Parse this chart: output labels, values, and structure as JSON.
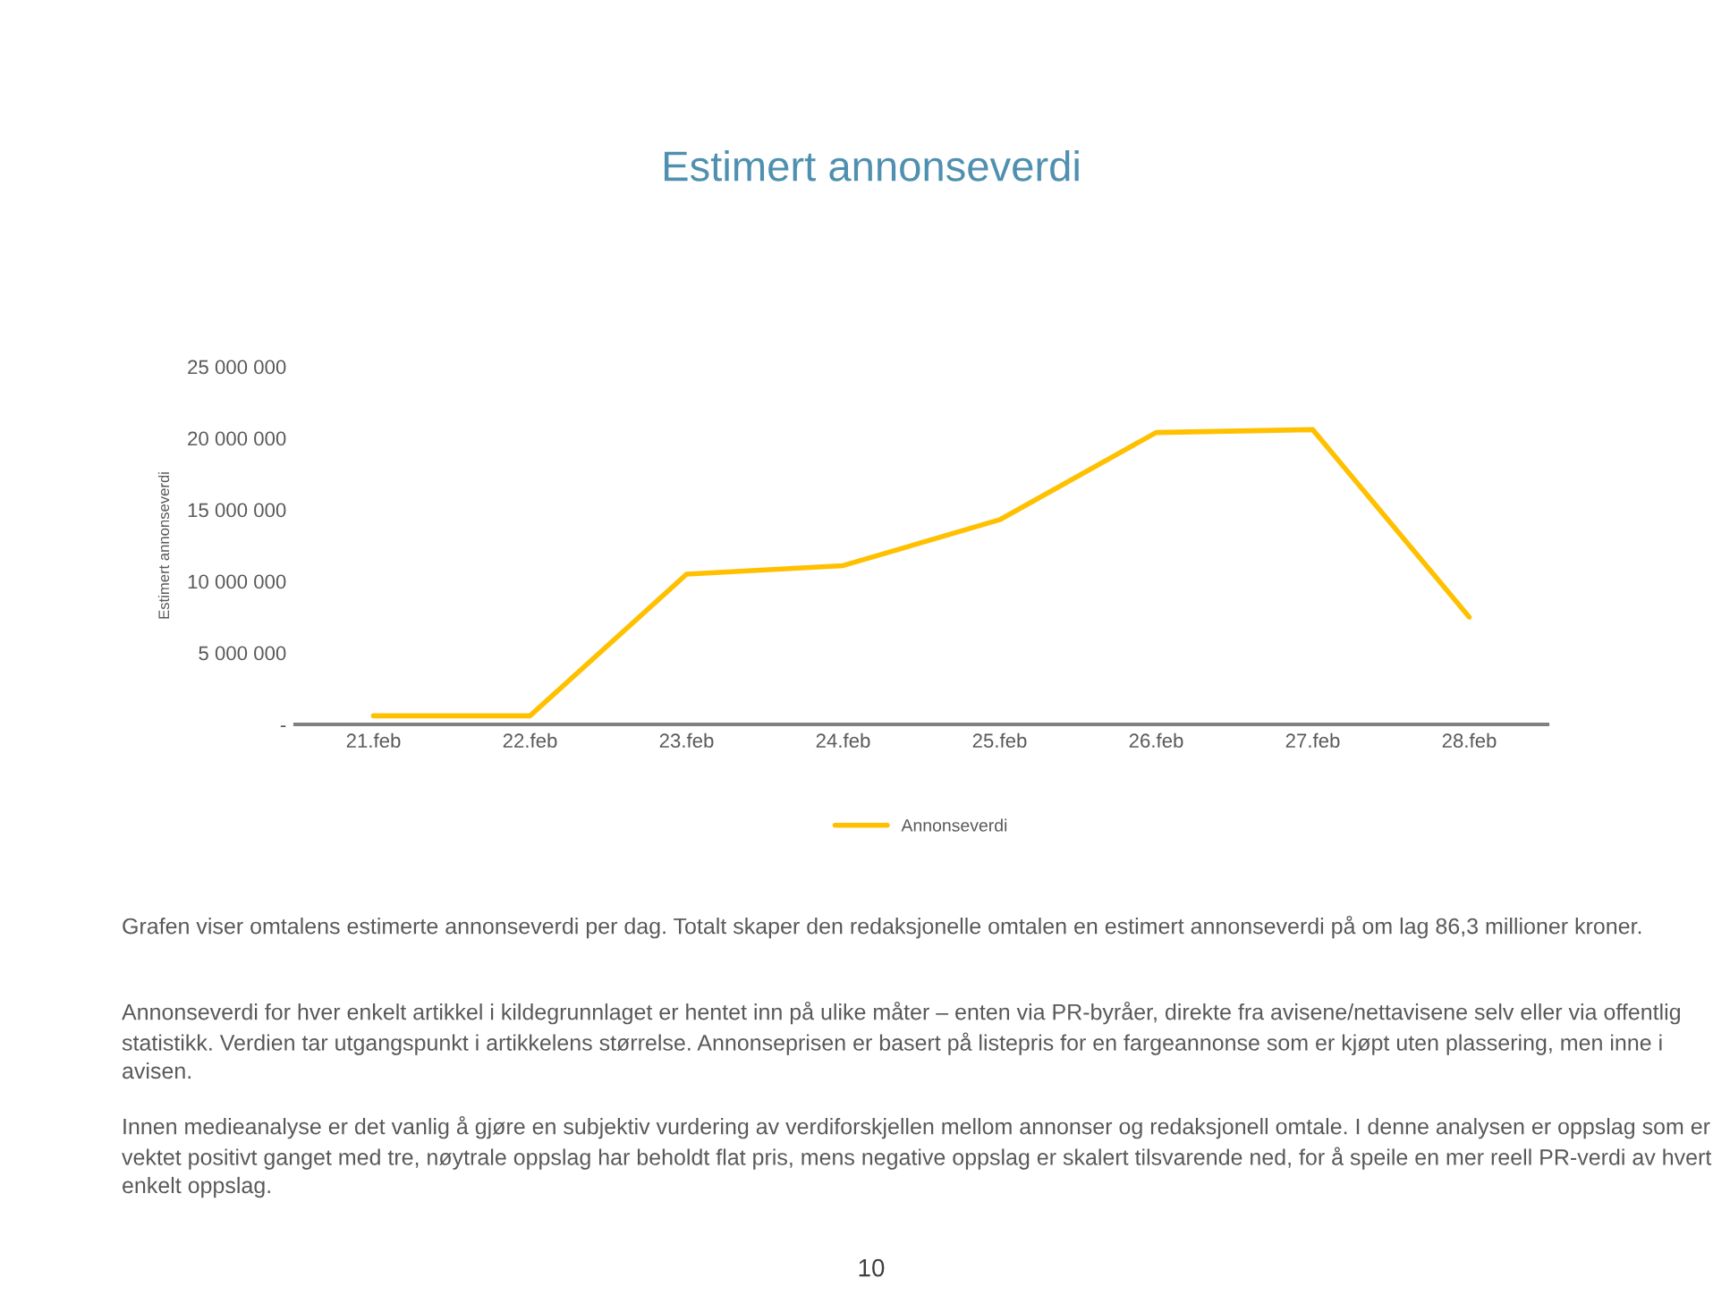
{
  "chart_data": {
    "type": "line",
    "title": "Estimert annonseverdi",
    "ylabel": "Estimert annonseverdi",
    "categories": [
      "21.feb",
      "22.feb",
      "23.feb",
      "24.feb",
      "25.feb",
      "26.feb",
      "27.feb",
      "28.feb"
    ],
    "series": [
      {
        "name": "Annonseverdi",
        "color": "#ffc000",
        "values": [
          600000,
          600000,
          10500000,
          11100000,
          14300000,
          20400000,
          20600000,
          7500000
        ]
      }
    ],
    "ylim": [
      0,
      25000000
    ],
    "yticks": [
      {
        "value": 0,
        "label": "-"
      },
      {
        "value": 5000000,
        "label": "5 000 000"
      },
      {
        "value": 10000000,
        "label": "10 000 000"
      },
      {
        "value": 15000000,
        "label": "15 000 000"
      },
      {
        "value": 20000000,
        "label": "20 000 000"
      },
      {
        "value": 25000000,
        "label": "25 000 000"
      }
    ],
    "grid": false,
    "legend": "bottom",
    "marker": "none",
    "line_style": "solid",
    "annotations": [
      "Grafen viser omtalens estimerte annonseverdi per dag. Totalt skaper den redaksjonelle omtalen en estimert annonseverdi på om lag 86,3 millioner kroner.",
      "Annonseverdi for hver enkelt artikkel i kildegrunnlaget er hentet inn på ulike måter – enten via PR-byråer, direkte fra avisene/nettavisene selv eller via offentlig statistikk. Verdien tar utgangspunkt i artikkelens størrelse. Annonseprisen er basert på listepris for en fargeannonse som er kjøpt uten plassering, men inne i avisen.",
      "Innen medieanalyse er det vanlig å gjøre en subjektiv vurdering av verdiforskjellen mellom annonser og redaksjonell omtale. I denne analysen er oppslag som er vektet positivt ganget med tre, nøytrale oppslag har beholdt flat pris, mens negative oppslag er skalert tilsvarende ned, for å speile en mer reell PR-verdi av hvert enkelt oppslag.",
      "10"
    ]
  }
}
